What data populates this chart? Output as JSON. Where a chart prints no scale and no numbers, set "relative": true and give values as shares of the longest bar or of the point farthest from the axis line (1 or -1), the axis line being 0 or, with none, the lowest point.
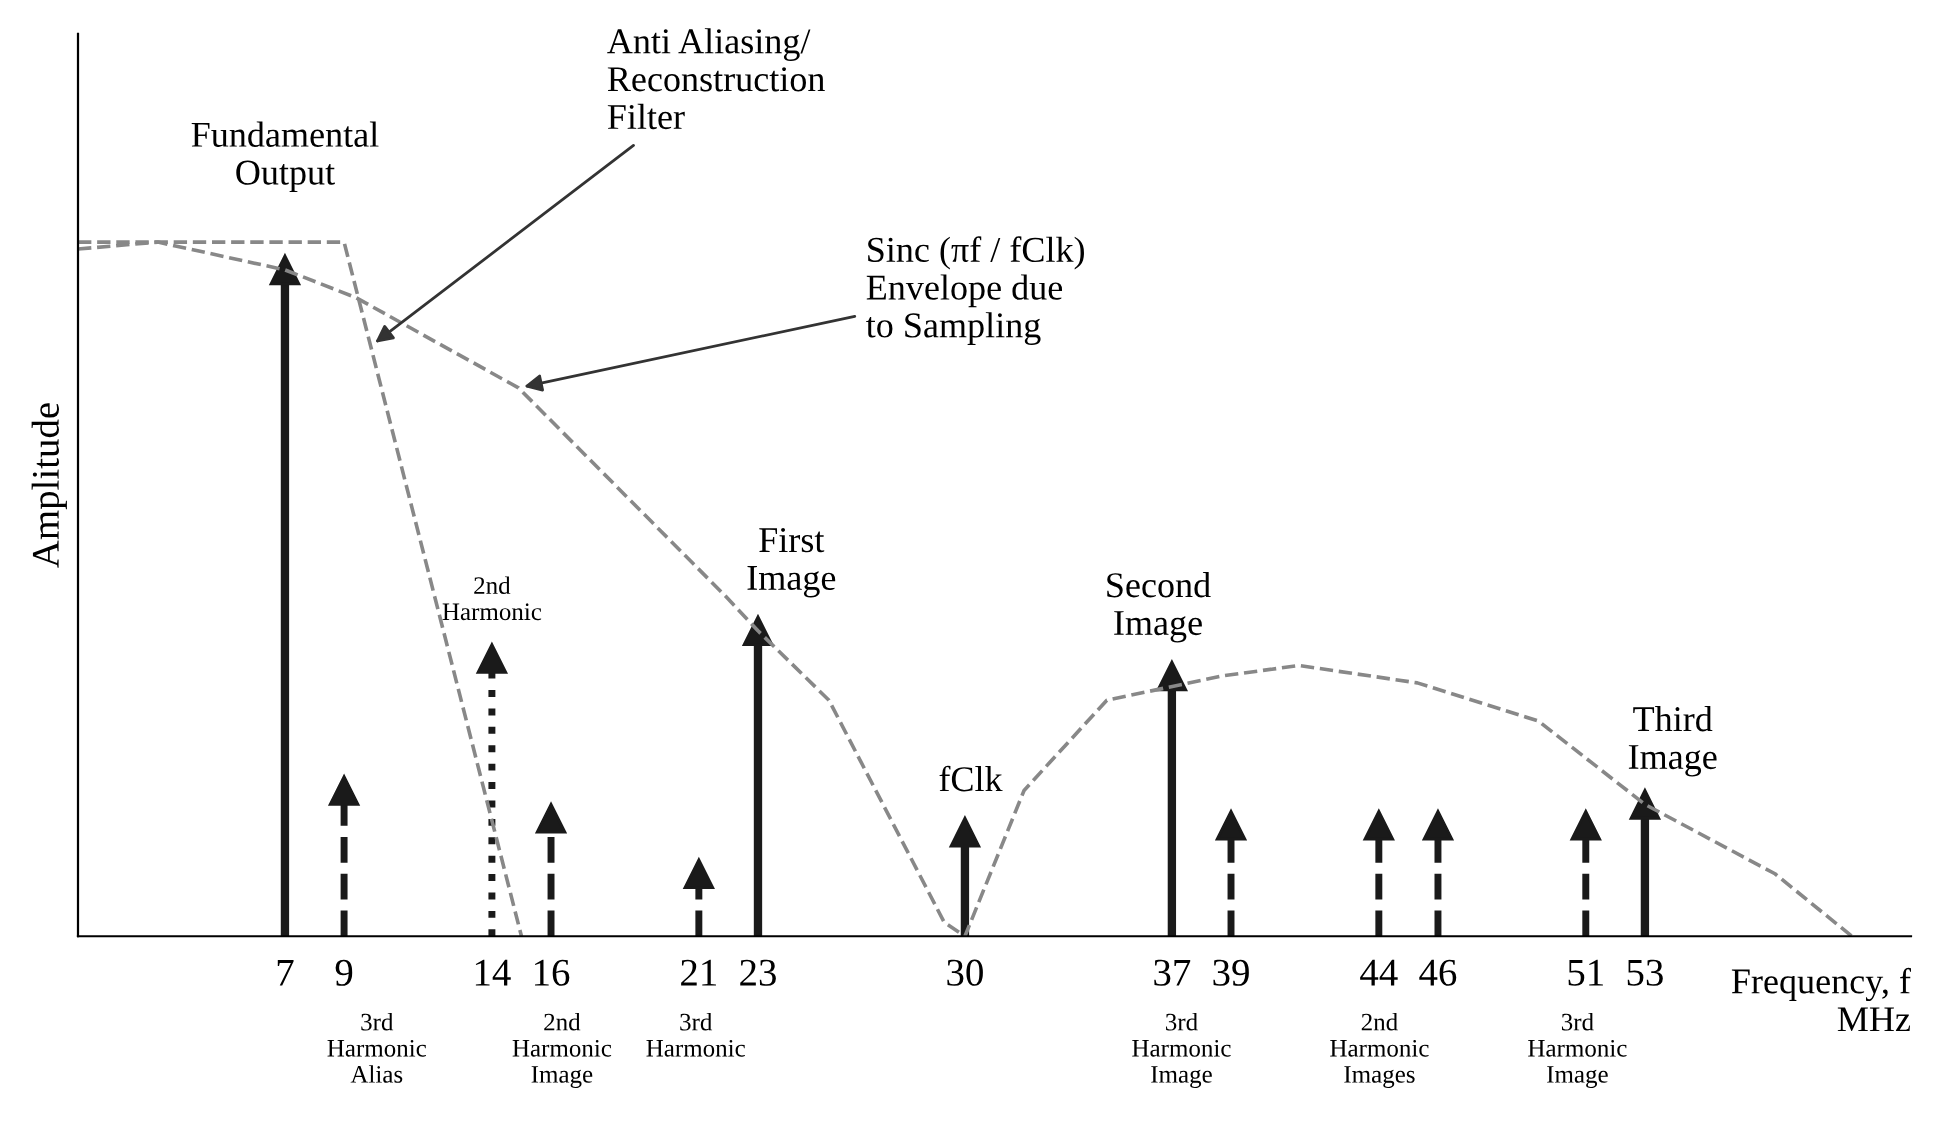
{
  "chart_data": {
    "type": "lollipop",
    "relative": true,
    "marker": "triangle",
    "xlabel": "Frequency, f\nMHz",
    "ylabel": "Amplitude",
    "xlim": [
      0,
      62
    ],
    "xticks": [
      7,
      9,
      14,
      16,
      21,
      23,
      30,
      37,
      39,
      44,
      46,
      51,
      53
    ],
    "series": [
      {
        "color": "#1a1a1a",
        "line_style": "solid",
        "x": [
          7,
          23,
          37,
          53
        ],
        "values": [
          0.96,
          0.44,
          0.375,
          0.19
        ]
      },
      {
        "color": "#1a1a1a",
        "line_style": "dashed",
        "x": [
          9,
          16,
          21,
          39,
          44,
          46,
          51
        ],
        "values": [
          0.21,
          0.17,
          0.09,
          0.16,
          0.16,
          0.16,
          0.16
        ]
      },
      {
        "color": "#1a1a1a",
        "line_style": "dotted",
        "x": [
          14
        ],
        "values": [
          0.4
        ]
      },
      {
        "color": "#1a1a1a",
        "line_style": "solid",
        "x": [
          30
        ],
        "values": [
          0.15
        ]
      },
      {
        "type": "line",
        "color": "#888888",
        "line_style": "dashed",
        "marker": "none",
        "x": [
          0,
          2.7,
          7,
          9.4,
          14.9,
          21.9,
          23,
          25.4,
          29.3,
          30,
          32,
          34.8,
          38.7,
          41.3,
          45.3,
          49.4,
          53,
          57.4,
          60
        ],
        "values": [
          0.99,
          1.0,
          0.96,
          0.92,
          0.79,
          0.49,
          0.44,
          0.34,
          0.02,
          0,
          0.21,
          0.34,
          0.375,
          0.39,
          0.365,
          0.31,
          0.19,
          0.09,
          0
        ]
      },
      {
        "type": "line",
        "color": "#888888",
        "line_style": "dashed",
        "marker": "none",
        "x": [
          0,
          9,
          15
        ],
        "values": [
          1.0,
          1.0,
          0
        ]
      }
    ],
    "annotations": [
      {
        "text": "Fundamental\nOutput",
        "x": 7,
        "y": 0.96
      },
      {
        "text": "Anti Aliasing/\nReconstruction\nFilter",
        "x": 9.9,
        "y": 0.85
      },
      {
        "text": "Sinc (πf / fClk)\nEnvelope due\nto Sampling",
        "x": 14.9,
        "y": 0.79
      },
      {
        "text": "2nd\nHarmonic",
        "x": 14,
        "y": 0.4
      },
      {
        "text": "First\nImage",
        "x": 23,
        "y": 0.44
      },
      {
        "text": "fClk",
        "x": 30,
        "y": 0.15
      },
      {
        "text": "Second\nImage",
        "x": 37,
        "y": 0.375
      },
      {
        "text": "Third\nImage",
        "x": 53,
        "y": 0.19
      },
      "3rd\nHarmonic\nAlias",
      "2nd\nHarmonic\nImage",
      "3rd\nHarmonic",
      "3rd\nHarmonic\nImage",
      "2nd\nHarmonic\nImages",
      "3rd\nHarmonic\nImage"
    ]
  }
}
